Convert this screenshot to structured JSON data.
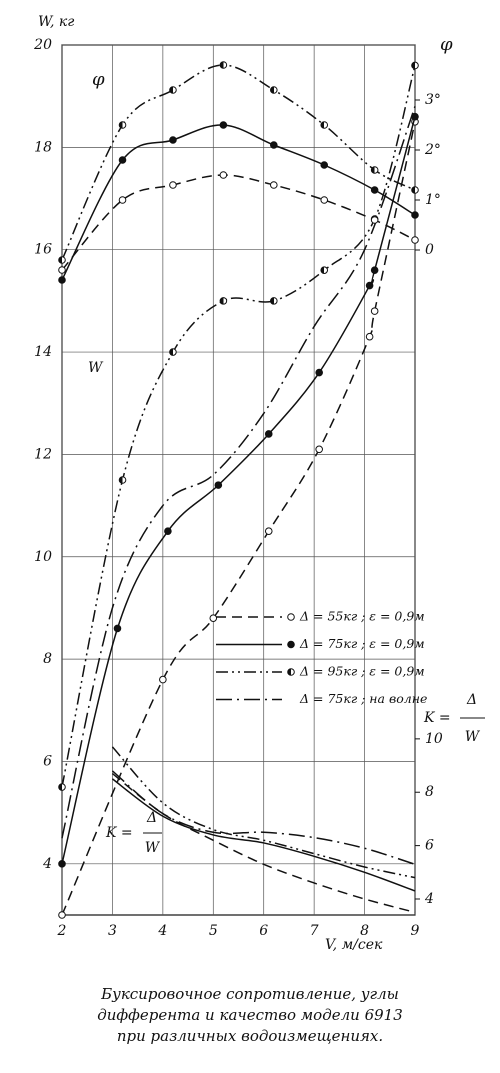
{
  "chart_data": [
    {
      "type": "line",
      "xlabel": "V, м/сек",
      "ylabel": "W, кг",
      "annotation": "W",
      "color": "#111",
      "xlim": [
        2,
        9
      ],
      "xticks": [
        2,
        3,
        4,
        5,
        6,
        7,
        8,
        9
      ],
      "ylim": [
        3,
        20
      ],
      "yticks": [
        4,
        6,
        8,
        10,
        12,
        14,
        16,
        18,
        20
      ],
      "axis_side": "left",
      "grid": true,
      "series": [
        {
          "name": "Δ = 55кг ; ε = 0,9м",
          "style": "dashed",
          "marker": "open",
          "x": [
            2,
            4.0,
            5.0,
            6.1,
            7.1,
            8.1,
            8.2,
            9
          ],
          "values": [
            3.0,
            7.6,
            8.8,
            10.5,
            12.1,
            14.3,
            14.8,
            18.5
          ]
        },
        {
          "name": "Δ = 75кг ; ε = 0,9м",
          "style": "solid",
          "marker": "filled",
          "x": [
            2,
            3.1,
            4.1,
            5.1,
            6.1,
            7.1,
            8.1,
            8.2,
            9
          ],
          "values": [
            4.0,
            8.6,
            10.5,
            11.4,
            12.4,
            13.6,
            15.3,
            15.6,
            18.6
          ]
        },
        {
          "name": "Δ = 95кг ; ε = 0,9м",
          "style": "dashdotdot",
          "marker": "half",
          "x": [
            2,
            3.2,
            4.2,
            5.2,
            6.2,
            7.2,
            8.2,
            9
          ],
          "values": [
            5.5,
            11.5,
            14.0,
            15.0,
            15.0,
            15.6,
            16.6,
            19.6
          ]
        },
        {
          "name": "Δ = 75кг ; на волне",
          "style": "dashdot",
          "marker": "none",
          "x": [
            2,
            3,
            4,
            5,
            6,
            7,
            8,
            9
          ],
          "values": [
            4.5,
            9.0,
            11.0,
            11.6,
            12.8,
            14.5,
            16.0,
            18.8
          ]
        }
      ]
    },
    {
      "type": "line",
      "ylabel": "φ",
      "annotation": "φ",
      "color": "#111",
      "xlim": [
        2,
        9
      ],
      "ylim": [
        -13.3,
        4.1
      ],
      "yticks": [
        0,
        {
          "value": 1,
          "label": "1°"
        },
        {
          "value": 2,
          "label": "2°"
        },
        {
          "value": 3,
          "label": "3°"
        }
      ],
      "axis_side": "right",
      "series": [
        {
          "style": "dashed",
          "marker": "open",
          "x": [
            2,
            3.2,
            4.2,
            5.2,
            6.2,
            7.2,
            8.2,
            9
          ],
          "values": [
            -0.4,
            1.0,
            1.3,
            1.5,
            1.3,
            1.0,
            0.6,
            0.2
          ]
        },
        {
          "style": "solid",
          "marker": "filled",
          "x": [
            2,
            3.2,
            4.2,
            5.2,
            6.2,
            7.2,
            8.2,
            9
          ],
          "values": [
            -0.6,
            1.8,
            2.2,
            2.5,
            2.1,
            1.7,
            1.2,
            0.7
          ]
        },
        {
          "style": "dashdotdot",
          "marker": "half",
          "x": [
            2,
            3.2,
            4.2,
            5.2,
            6.2,
            7.2,
            8.2,
            9
          ],
          "values": [
            -0.2,
            2.5,
            3.2,
            3.7,
            3.2,
            2.5,
            1.6,
            1.2
          ]
        }
      ]
    },
    {
      "type": "line",
      "ylabel": {
        "lhs": "K =",
        "num": "Δ",
        "den": "W"
      },
      "annotation": {
        "lhs": "K =",
        "num": "Δ",
        "den": "W"
      },
      "color": "#111",
      "xlim": [
        2,
        9
      ],
      "ylim": [
        3.4,
        36
      ],
      "yticks": [
        4,
        6,
        8,
        10
      ],
      "axis_side": "right",
      "series": [
        {
          "style": "dashed",
          "marker": "none",
          "x": [
            3,
            4,
            5,
            6,
            7,
            8,
            9
          ],
          "values": [
            8.7,
            7.2,
            6.2,
            5.3,
            4.6,
            4.0,
            3.5
          ]
        },
        {
          "style": "solid",
          "marker": "none",
          "x": [
            3,
            4,
            5,
            6,
            7,
            8,
            9
          ],
          "values": [
            8.5,
            7.1,
            6.4,
            6.1,
            5.6,
            5.0,
            4.3
          ]
        },
        {
          "style": "dashdotdot",
          "marker": "none",
          "x": [
            3,
            4,
            5,
            6,
            7,
            8,
            9
          ],
          "values": [
            9.7,
            7.6,
            6.6,
            6.2,
            5.7,
            5.2,
            4.8
          ]
        },
        {
          "style": "dashdot",
          "marker": "none",
          "x": [
            3,
            4,
            5,
            6,
            7,
            8,
            9
          ],
          "values": [
            8.8,
            7.2,
            6.5,
            6.5,
            6.3,
            5.9,
            5.3
          ]
        }
      ]
    }
  ],
  "caption": [
    "Буксировочное сопротивление, углы",
    "дифферента и качество модели 6913",
    "при различных водоизмещениях."
  ]
}
